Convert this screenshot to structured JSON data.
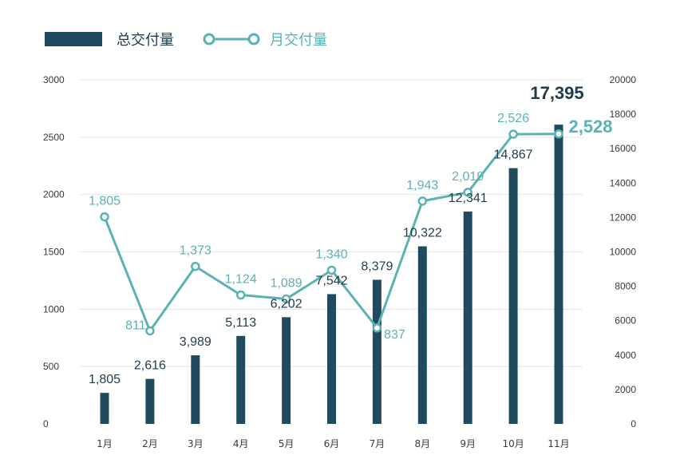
{
  "colors": {
    "bar": "#1f4a5f",
    "line": "#5ab2b4",
    "grid": "#e3e6e8",
    "text": "#333a40"
  },
  "legend": {
    "bar_label": "总交付量",
    "line_label": "月交付量"
  },
  "chart_data": {
    "type": "bar+line",
    "categories": [
      "1月",
      "2月",
      "3月",
      "4月",
      "5月",
      "6月",
      "7月",
      "8月",
      "9月",
      "10月",
      "11月"
    ],
    "y_left": {
      "min": 0,
      "max": 3000,
      "ticks": [
        0,
        500,
        1000,
        1500,
        2000,
        2500,
        3000
      ]
    },
    "y_right": {
      "min": 0,
      "max": 20000,
      "ticks": [
        0,
        2000,
        4000,
        6000,
        8000,
        10000,
        12000,
        14000,
        16000,
        18000,
        20000
      ]
    },
    "series": [
      {
        "name": "总交付量",
        "type": "bar",
        "axis": "right",
        "values": [
          1805,
          2616,
          3989,
          5113,
          6202,
          7542,
          8379,
          10322,
          12341,
          14867,
          17395
        ],
        "labels": [
          "1,805",
          "2,616",
          "3,989",
          "5,113",
          "6,202",
          "7,542",
          "8,379",
          "10,322",
          "12,341",
          "14,867",
          "17,395"
        ]
      },
      {
        "name": "月交付量",
        "type": "line",
        "axis": "left",
        "values": [
          1805,
          811,
          1373,
          1124,
          1089,
          1340,
          837,
          1943,
          2019,
          2526,
          2528
        ],
        "labels": [
          "1,805",
          "811",
          "1,373",
          "1,124",
          "1,089",
          "1,340",
          "837",
          "1,943",
          "2,019",
          "2,526",
          "2,528"
        ]
      }
    ],
    "grid": true,
    "legend_position": "top-left"
  }
}
